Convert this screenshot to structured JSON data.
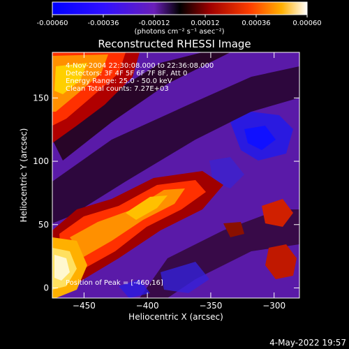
{
  "colorbar": {
    "ticks": [
      "-0.00060",
      "-0.00036",
      "-0.00012",
      "0.00012",
      "0.00036",
      "0.00060"
    ],
    "unit_label": "(photons cm⁻² s⁻¹ asec⁻²)",
    "range": [
      -0.0006,
      0.0006
    ]
  },
  "chart_data": {
    "type": "heatmap",
    "title": "Reconstructed RHESSI Image",
    "xlabel": "Heliocentric X (arcsec)",
    "ylabel": "Heliocentric Y (arcsec)",
    "xlim": [
      -475,
      -280
    ],
    "ylim": [
      -8,
      186
    ],
    "xticks": [
      -450,
      -400,
      -350,
      -300
    ],
    "yticks": [
      0,
      50,
      100,
      150
    ],
    "annotations": [
      "4-Nov-2004 22:30:08.000 to 22:36:08.000",
      "Detectors: 3F 4F 5F 6F 7F 8F, Att 0",
      "Energy Range: 25.0 - 50.0 keV",
      "Clean     Total counts: 7.27E+03"
    ],
    "peak_label": "Position of Peak = [-460,16]",
    "peak": [
      -460,
      16
    ],
    "colors": {
      "low": "#0000ff",
      "mid_low": "#6a1fb8",
      "mid": "#1a0000",
      "mid_high": "#ff2a00",
      "high": "#ffffff"
    }
  },
  "timestamp": "4-May-2022 19:57"
}
